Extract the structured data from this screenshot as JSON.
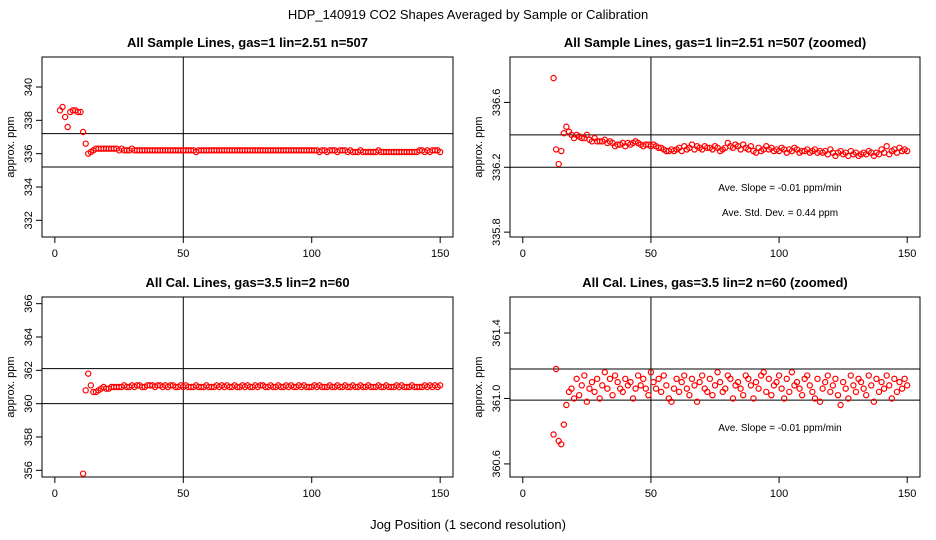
{
  "main_title": "HDP_140919  CO2 Shapes Averaged by Sample or Calibration",
  "xlabel": "Jog Position (1 second resolution)",
  "style": {
    "point_color": "#ff0000",
    "line_color": "#000000"
  },
  "chart_data": [
    {
      "type": "scatter",
      "title": "All Sample Lines, gas=1 lin=2.51 n=507",
      "ylabel": "approx. ppm",
      "xlim": [
        -5,
        155
      ],
      "ylim": [
        331,
        341.8
      ],
      "xticks": [
        0,
        50,
        100,
        150
      ],
      "yticks": [
        332,
        334,
        336,
        338,
        340
      ],
      "vline": 50,
      "hlines": [
        337.2,
        335.2
      ],
      "annotations": [],
      "x": [
        2,
        3,
        4,
        5,
        6,
        7,
        8,
        9,
        10,
        11,
        12,
        13,
        14,
        15,
        16,
        17,
        18,
        19,
        20,
        21,
        22,
        23,
        24,
        25,
        26,
        27,
        28,
        29,
        30,
        31,
        32,
        33,
        34,
        35,
        36,
        37,
        38,
        39,
        40,
        41,
        42,
        43,
        44,
        45,
        46,
        47,
        48,
        49,
        50,
        51,
        52,
        53,
        54,
        55,
        56,
        57,
        58,
        59,
        60,
        61,
        62,
        63,
        64,
        65,
        66,
        67,
        68,
        69,
        70,
        71,
        72,
        73,
        74,
        75,
        76,
        77,
        78,
        79,
        80,
        81,
        82,
        83,
        84,
        85,
        86,
        87,
        88,
        89,
        90,
        91,
        92,
        93,
        94,
        95,
        96,
        97,
        98,
        99,
        100,
        101,
        102,
        103,
        104,
        105,
        106,
        107,
        108,
        109,
        110,
        111,
        112,
        113,
        114,
        115,
        116,
        117,
        118,
        119,
        120,
        121,
        122,
        123,
        124,
        125,
        126,
        127,
        128,
        129,
        130,
        131,
        132,
        133,
        134,
        135,
        136,
        137,
        138,
        139,
        140,
        141,
        142,
        143,
        144,
        145,
        146,
        147,
        148,
        149,
        150
      ],
      "y": [
        338.6,
        338.8,
        338.2,
        337.6,
        338.5,
        338.6,
        338.6,
        338.5,
        338.5,
        337.3,
        336.6,
        336.0,
        336.1,
        336.2,
        336.3,
        336.3,
        336.3,
        336.3,
        336.3,
        336.3,
        336.3,
        336.3,
        336.3,
        336.2,
        336.3,
        336.2,
        336.2,
        336.2,
        336.3,
        336.2,
        336.2,
        336.2,
        336.2,
        336.2,
        336.2,
        336.2,
        336.2,
        336.2,
        336.2,
        336.2,
        336.2,
        336.2,
        336.2,
        336.2,
        336.2,
        336.2,
        336.2,
        336.2,
        336.2,
        336.2,
        336.2,
        336.2,
        336.2,
        336.1,
        336.2,
        336.2,
        336.2,
        336.2,
        336.2,
        336.2,
        336.2,
        336.2,
        336.2,
        336.2,
        336.2,
        336.2,
        336.2,
        336.2,
        336.2,
        336.2,
        336.2,
        336.2,
        336.2,
        336.2,
        336.2,
        336.2,
        336.2,
        336.2,
        336.2,
        336.2,
        336.2,
        336.2,
        336.2,
        336.2,
        336.2,
        336.2,
        336.2,
        336.2,
        336.2,
        336.2,
        336.2,
        336.2,
        336.2,
        336.2,
        336.2,
        336.2,
        336.2,
        336.2,
        336.2,
        336.2,
        336.2,
        336.1,
        336.2,
        336.2,
        336.1,
        336.2,
        336.2,
        336.2,
        336.1,
        336.2,
        336.2,
        336.2,
        336.1,
        336.2,
        336.1,
        336.1,
        336.1,
        336.2,
        336.1,
        336.1,
        336.1,
        336.1,
        336.1,
        336.1,
        336.2,
        336.1,
        336.1,
        336.1,
        336.1,
        336.1,
        336.1,
        336.1,
        336.1,
        336.1,
        336.1,
        336.1,
        336.1,
        336.1,
        336.1,
        336.1,
        336.2,
        336.2,
        336.1,
        336.2,
        336.1,
        336.2,
        336.2,
        336.2,
        336.1
      ]
    },
    {
      "type": "scatter",
      "title": "All Sample Lines, gas=1 lin=2.51 n=507 (zoomed)",
      "ylabel": "approx. ppm",
      "xlim": [
        -5,
        155
      ],
      "ylim": [
        335.77,
        336.88
      ],
      "xticks": [
        0,
        50,
        100,
        150
      ],
      "yticks": [
        335.8,
        336.2,
        336.6
      ],
      "vline": 50,
      "hlines": [
        336.4,
        336.2
      ],
      "annotations": [
        "Ave. Slope =  -0.01  ppm/min",
        "Ave. Std. Dev. =  0.44  ppm"
      ],
      "x": [
        12,
        13,
        14,
        15,
        16,
        17,
        18,
        19,
        20,
        21,
        22,
        23,
        24,
        25,
        26,
        27,
        28,
        29,
        30,
        31,
        32,
        33,
        34,
        35,
        36,
        37,
        38,
        39,
        40,
        41,
        42,
        43,
        44,
        45,
        46,
        47,
        48,
        49,
        50,
        51,
        52,
        53,
        54,
        55,
        56,
        57,
        58,
        59,
        60,
        61,
        62,
        63,
        64,
        65,
        66,
        67,
        68,
        69,
        70,
        71,
        72,
        73,
        74,
        75,
        76,
        77,
        78,
        79,
        80,
        81,
        82,
        83,
        84,
        85,
        86,
        87,
        88,
        89,
        90,
        91,
        92,
        93,
        94,
        95,
        96,
        97,
        98,
        99,
        100,
        101,
        102,
        103,
        104,
        105,
        106,
        107,
        108,
        109,
        110,
        111,
        112,
        113,
        114,
        115,
        116,
        117,
        118,
        119,
        120,
        121,
        122,
        123,
        124,
        125,
        126,
        127,
        128,
        129,
        130,
        131,
        132,
        133,
        134,
        135,
        136,
        137,
        138,
        139,
        140,
        141,
        142,
        143,
        144,
        145,
        146,
        147,
        148,
        149,
        150
      ],
      "y": [
        336.75,
        336.31,
        336.22,
        336.3,
        336.41,
        336.45,
        336.42,
        336.4,
        336.38,
        336.4,
        336.39,
        336.38,
        336.38,
        336.4,
        336.37,
        336.36,
        336.38,
        336.36,
        336.36,
        336.36,
        336.37,
        336.35,
        336.36,
        336.35,
        336.33,
        336.34,
        336.34,
        336.35,
        336.33,
        336.35,
        336.34,
        336.35,
        336.36,
        336.35,
        336.34,
        336.33,
        336.34,
        336.34,
        336.33,
        336.34,
        336.33,
        336.32,
        336.32,
        336.31,
        336.3,
        336.3,
        336.31,
        336.3,
        336.31,
        336.32,
        336.3,
        336.33,
        336.31,
        336.32,
        336.34,
        336.31,
        336.33,
        336.32,
        336.31,
        336.33,
        336.32,
        336.32,
        336.31,
        336.33,
        336.32,
        336.3,
        336.31,
        336.32,
        336.35,
        336.33,
        336.32,
        336.34,
        336.33,
        336.31,
        336.34,
        336.32,
        336.31,
        336.33,
        336.3,
        336.29,
        336.32,
        336.3,
        336.31,
        336.33,
        336.31,
        336.32,
        336.3,
        336.31,
        336.3,
        336.32,
        336.31,
        336.29,
        336.31,
        336.3,
        336.32,
        336.31,
        336.29,
        336.3,
        336.3,
        336.31,
        336.29,
        336.3,
        336.31,
        336.29,
        336.3,
        336.29,
        336.3,
        336.28,
        336.31,
        336.29,
        336.27,
        336.29,
        336.3,
        336.28,
        336.29,
        336.27,
        336.3,
        336.28,
        336.29,
        336.27,
        336.28,
        336.29,
        336.28,
        336.3,
        336.29,
        336.27,
        336.29,
        336.28,
        336.31,
        336.29,
        336.33,
        336.28,
        336.3,
        336.31,
        336.29,
        336.32,
        336.3,
        336.31,
        336.3
      ]
    },
    {
      "type": "scatter",
      "title": "All Cal. Lines, gas=3.5 lin=2 n=60",
      "ylabel": "approx. ppm",
      "xlim": [
        -5,
        155
      ],
      "ylim": [
        355.6,
        366.4
      ],
      "xticks": [
        0,
        50,
        100,
        150
      ],
      "yticks": [
        356,
        358,
        360,
        362,
        364,
        366
      ],
      "vline": 50,
      "hlines": [
        362.1,
        360.0
      ],
      "annotations": [],
      "x": [
        11,
        12,
        13,
        14,
        15,
        16,
        17,
        18,
        19,
        20,
        21,
        22,
        23,
        24,
        25,
        26,
        27,
        28,
        29,
        30,
        31,
        32,
        33,
        34,
        35,
        36,
        37,
        38,
        39,
        40,
        41,
        42,
        43,
        44,
        45,
        46,
        47,
        48,
        49,
        50,
        51,
        52,
        53,
        54,
        55,
        56,
        57,
        58,
        59,
        60,
        61,
        62,
        63,
        64,
        65,
        66,
        67,
        68,
        69,
        70,
        71,
        72,
        73,
        74,
        75,
        76,
        77,
        78,
        79,
        80,
        81,
        82,
        83,
        84,
        85,
        86,
        87,
        88,
        89,
        90,
        91,
        92,
        93,
        94,
        95,
        96,
        97,
        98,
        99,
        100,
        101,
        102,
        103,
        104,
        105,
        106,
        107,
        108,
        109,
        110,
        111,
        112,
        113,
        114,
        115,
        116,
        117,
        118,
        119,
        120,
        121,
        122,
        123,
        124,
        125,
        126,
        127,
        128,
        129,
        130,
        131,
        132,
        133,
        134,
        135,
        136,
        137,
        138,
        139,
        140,
        141,
        142,
        143,
        144,
        145,
        146,
        147,
        148,
        149,
        150
      ],
      "y": [
        355.8,
        360.8,
        361.8,
        361.1,
        360.7,
        360.7,
        360.8,
        360.9,
        361.0,
        360.9,
        360.9,
        361.0,
        361.0,
        361.0,
        361.0,
        361.0,
        361.1,
        361.0,
        361.0,
        361.1,
        361.0,
        361.1,
        361.1,
        361.0,
        361.0,
        361.1,
        361.1,
        361.1,
        361.0,
        361.1,
        361.1,
        361.0,
        361.1,
        361.0,
        361.1,
        361.1,
        361.0,
        361.0,
        361.1,
        361.0,
        361.1,
        361.0,
        361.0,
        361.0,
        361.1,
        361.0,
        361.0,
        361.0,
        361.1,
        361.0,
        361.0,
        361.0,
        361.1,
        361.0,
        361.1,
        361.0,
        361.1,
        361.0,
        361.0,
        361.1,
        361.0,
        361.0,
        361.1,
        361.0,
        361.1,
        361.0,
        361.0,
        361.1,
        361.0,
        361.1,
        361.1,
        361.0,
        361.0,
        361.1,
        361.0,
        361.0,
        361.1,
        361.0,
        361.0,
        361.1,
        361.0,
        361.1,
        361.0,
        361.0,
        361.1,
        361.0,
        361.1,
        361.0,
        361.0,
        361.0,
        361.1,
        361.0,
        361.1,
        361.0,
        361.0,
        361.0,
        361.1,
        361.0,
        361.0,
        361.1,
        361.0,
        361.0,
        361.1,
        361.0,
        361.0,
        361.1,
        361.0,
        361.0,
        361.1,
        361.0,
        361.0,
        361.1,
        361.0,
        361.0,
        361.0,
        361.1,
        361.0,
        361.0,
        361.1,
        361.0,
        361.0,
        361.0,
        361.1,
        361.0,
        361.1,
        361.0,
        361.0,
        361.0,
        361.1,
        361.0,
        361.0,
        361.0,
        361.0,
        361.1,
        361.0,
        361.1,
        361.0,
        361.1,
        361.0,
        361.1
      ]
    },
    {
      "type": "scatter",
      "title": "All Cal. Lines, gas=3.5 lin=2 n=60 (zoomed)",
      "ylabel": "approx. ppm",
      "xlim": [
        -5,
        155
      ],
      "ylim": [
        360.52,
        361.62
      ],
      "xticks": [
        0,
        50,
        100,
        150
      ],
      "yticks": [
        360.6,
        361.0,
        361.4
      ],
      "vline": 50,
      "hlines": [
        361.18,
        360.99
      ],
      "annotations": [
        "Ave. Slope =  -0.01  ppm/min"
      ],
      "x": [
        12,
        13,
        14,
        15,
        16,
        17,
        18,
        19,
        20,
        21,
        22,
        23,
        24,
        25,
        26,
        27,
        28,
        29,
        30,
        31,
        32,
        33,
        34,
        35,
        36,
        37,
        38,
        39,
        40,
        41,
        42,
        43,
        44,
        45,
        46,
        47,
        48,
        49,
        50,
        51,
        52,
        53,
        54,
        55,
        56,
        57,
        58,
        59,
        60,
        61,
        62,
        63,
        64,
        65,
        66,
        67,
        68,
        69,
        70,
        71,
        72,
        73,
        74,
        75,
        76,
        77,
        78,
        79,
        80,
        81,
        82,
        83,
        84,
        85,
        86,
        87,
        88,
        89,
        90,
        91,
        92,
        93,
        94,
        95,
        96,
        97,
        98,
        99,
        100,
        101,
        102,
        103,
        104,
        105,
        106,
        107,
        108,
        109,
        110,
        111,
        112,
        113,
        114,
        115,
        116,
        117,
        118,
        119,
        120,
        121,
        122,
        123,
        124,
        125,
        126,
        127,
        128,
        129,
        130,
        131,
        132,
        133,
        134,
        135,
        136,
        137,
        138,
        139,
        140,
        141,
        142,
        143,
        144,
        145,
        146,
        147,
        148,
        149,
        150
      ],
      "y": [
        360.78,
        361.18,
        360.74,
        360.72,
        360.84,
        360.96,
        361.04,
        361.06,
        361.0,
        361.12,
        361.02,
        361.08,
        361.14,
        360.98,
        361.06,
        361.1,
        361.04,
        361.12,
        361.0,
        361.08,
        361.16,
        361.06,
        361.12,
        361.02,
        361.14,
        361.1,
        361.06,
        361.04,
        361.12,
        361.08,
        361.1,
        361.0,
        361.06,
        361.14,
        361.08,
        361.12,
        361.06,
        361.02,
        361.16,
        361.1,
        361.06,
        361.12,
        361.04,
        361.14,
        361.08,
        361.0,
        360.98,
        361.06,
        361.12,
        361.04,
        361.1,
        361.14,
        361.06,
        361.02,
        361.12,
        361.08,
        360.98,
        361.1,
        361.14,
        361.06,
        361.04,
        361.12,
        361.02,
        361.08,
        361.16,
        361.1,
        361.04,
        361.06,
        361.14,
        361.12,
        361.0,
        361.08,
        361.1,
        361.06,
        361.02,
        361.14,
        361.12,
        361.08,
        361.0,
        361.1,
        361.06,
        361.14,
        361.16,
        361.04,
        361.12,
        361.02,
        361.08,
        361.1,
        361.14,
        361.06,
        361.0,
        361.12,
        361.04,
        361.16,
        361.08,
        361.1,
        361.06,
        361.02,
        361.12,
        361.14,
        361.08,
        361.04,
        361.0,
        361.12,
        360.98,
        361.06,
        361.1,
        361.14,
        361.04,
        361.08,
        361.12,
        361.02,
        360.96,
        361.1,
        361.06,
        361.0,
        361.14,
        361.08,
        361.04,
        361.12,
        361.1,
        361.06,
        361.02,
        361.14,
        361.08,
        360.98,
        361.12,
        361.04,
        361.1,
        361.06,
        361.14,
        361.08,
        361.0,
        361.12,
        361.04,
        361.1,
        361.06,
        361.12,
        361.08
      ]
    }
  ]
}
